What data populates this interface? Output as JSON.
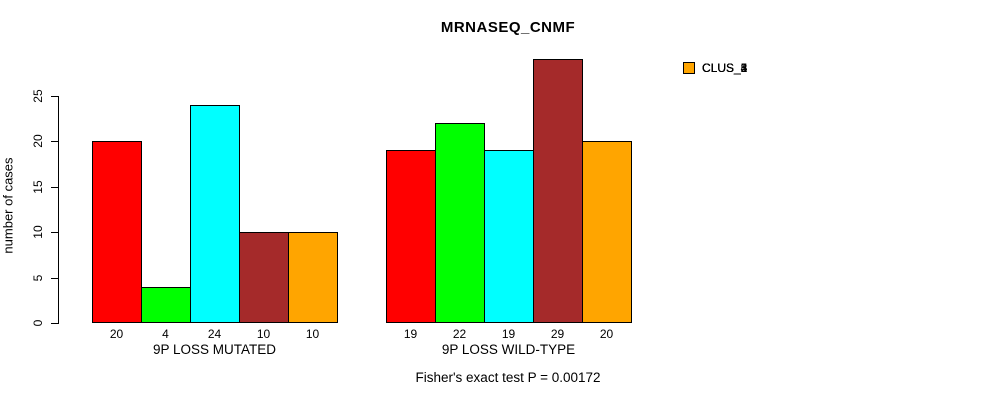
{
  "chart_data": {
    "type": "bar",
    "title": "MRNASEQ_CNMF",
    "xlabel": "",
    "ylabel": "number of cases",
    "ylim": [
      0,
      29
    ],
    "yticks": [
      0,
      5,
      10,
      15,
      20,
      25
    ],
    "grid": false,
    "legend_position": "right-outside",
    "categories": [
      "9P LOSS MUTATED",
      "9P LOSS WILD-TYPE"
    ],
    "series": [
      {
        "name": "CLUS_1",
        "color": "#FF0000",
        "values": [
          20,
          19
        ]
      },
      {
        "name": "CLUS_2",
        "color": "#00FF00",
        "values": [
          4,
          22
        ]
      },
      {
        "name": "CLUS_3",
        "color": "#00FFFF",
        "values": [
          24,
          19
        ]
      },
      {
        "name": "CLUS_4",
        "color": "#A52A2A",
        "values": [
          10,
          29
        ]
      },
      {
        "name": "CLUS_5",
        "color": "#FFA500",
        "values": [
          10,
          20
        ]
      }
    ],
    "bar_value_labels_shown": true,
    "annotation": "Fisher's exact test P = 0.00172"
  },
  "colors": {
    "background": "#FFFFFF",
    "text": "#000000",
    "bar_border": "#000000",
    "axis": "#000000"
  }
}
